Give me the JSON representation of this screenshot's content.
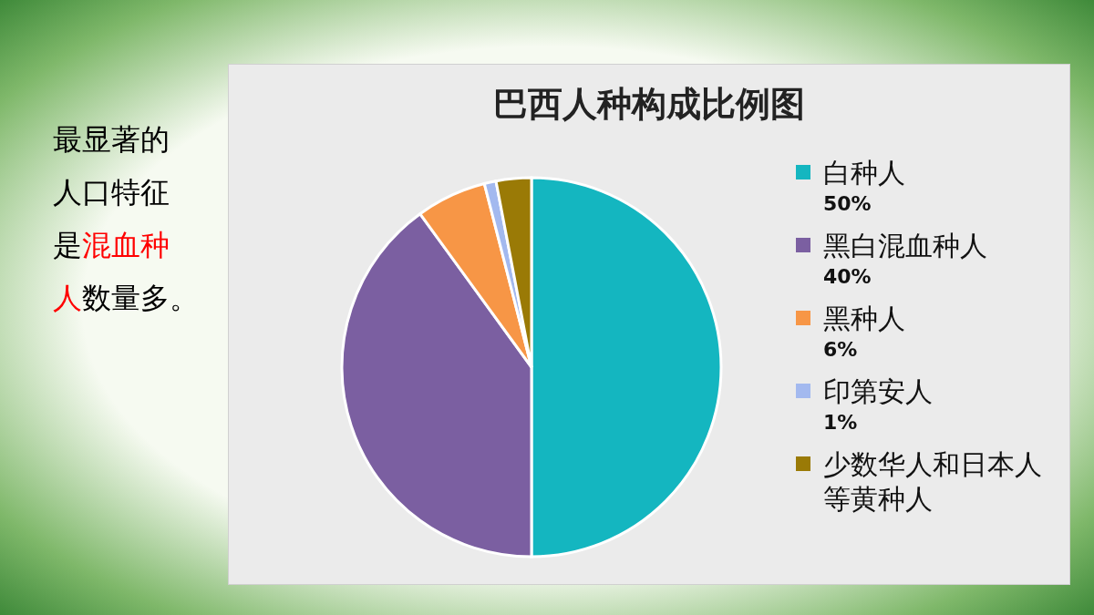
{
  "chart_data": {
    "type": "pie",
    "title": "巴西人种构成比例图",
    "categories": [
      "白种人",
      "黑白混血种人",
      "黑种人",
      "印第安人",
      "少数华人和日本人等黄种人"
    ],
    "values": [
      50,
      40,
      6,
      1,
      3
    ],
    "value_labels": [
      "50%",
      "40%",
      "6%",
      "1%",
      null
    ],
    "colors": [
      "#14b6c0",
      "#7b5fa1",
      "#f79646",
      "#a3b9ef",
      "#9a7a06"
    ],
    "legend": "right"
  },
  "note": {
    "lines": [
      [
        {
          "text": "最显著的",
          "highlight": false
        }
      ],
      [
        {
          "text": "人口特征",
          "highlight": false
        }
      ],
      [
        {
          "text": "是",
          "highlight": false
        },
        {
          "text": "混血种",
          "highlight": true
        }
      ],
      [
        {
          "text": "人",
          "highlight": true
        },
        {
          "text": "数量多。",
          "highlight": false
        }
      ]
    ]
  }
}
